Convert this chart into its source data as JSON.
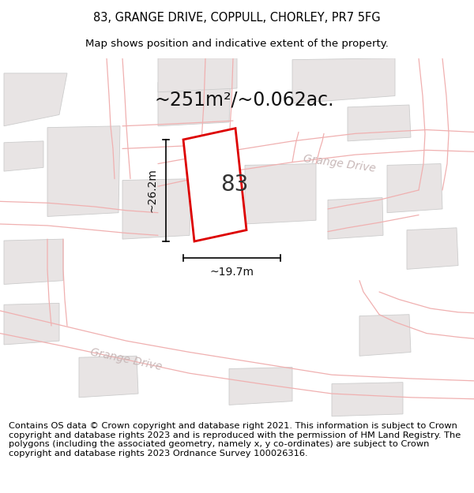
{
  "title_line1": "83, GRANGE DRIVE, COPPULL, CHORLEY, PR7 5FG",
  "title_line2": "Map shows position and indicative extent of the property.",
  "area_label": "~251m²/~0.062ac.",
  "plot_number": "83",
  "dim_height": "~26.2m",
  "dim_width": "~19.7m",
  "road_label_lower": "Grange Drive",
  "road_label_upper": "Grange Drive",
  "copyright_text": "Contains OS data © Crown copyright and database right 2021. This information is subject to Crown copyright and database rights 2023 and is reproduced with the permission of HM Land Registry. The polygons (including the associated geometry, namely x, y co-ordinates) are subject to Crown copyright and database rights 2023 Ordnance Survey 100026316.",
  "bg_white": "#ffffff",
  "map_bg": "#faf7f7",
  "plot_fill": "#ffffff",
  "plot_edge": "#dd0000",
  "road_line_color": "#f0b0b0",
  "building_fill": "#e8e4e4",
  "building_edge": "#cccccc",
  "title_fontsize": 10.5,
  "subtitle_fontsize": 9.5,
  "area_fontsize": 17,
  "plot_num_fontsize": 20,
  "dim_fontsize": 10,
  "road_label_fontsize": 10,
  "copyright_fontsize": 8.2
}
